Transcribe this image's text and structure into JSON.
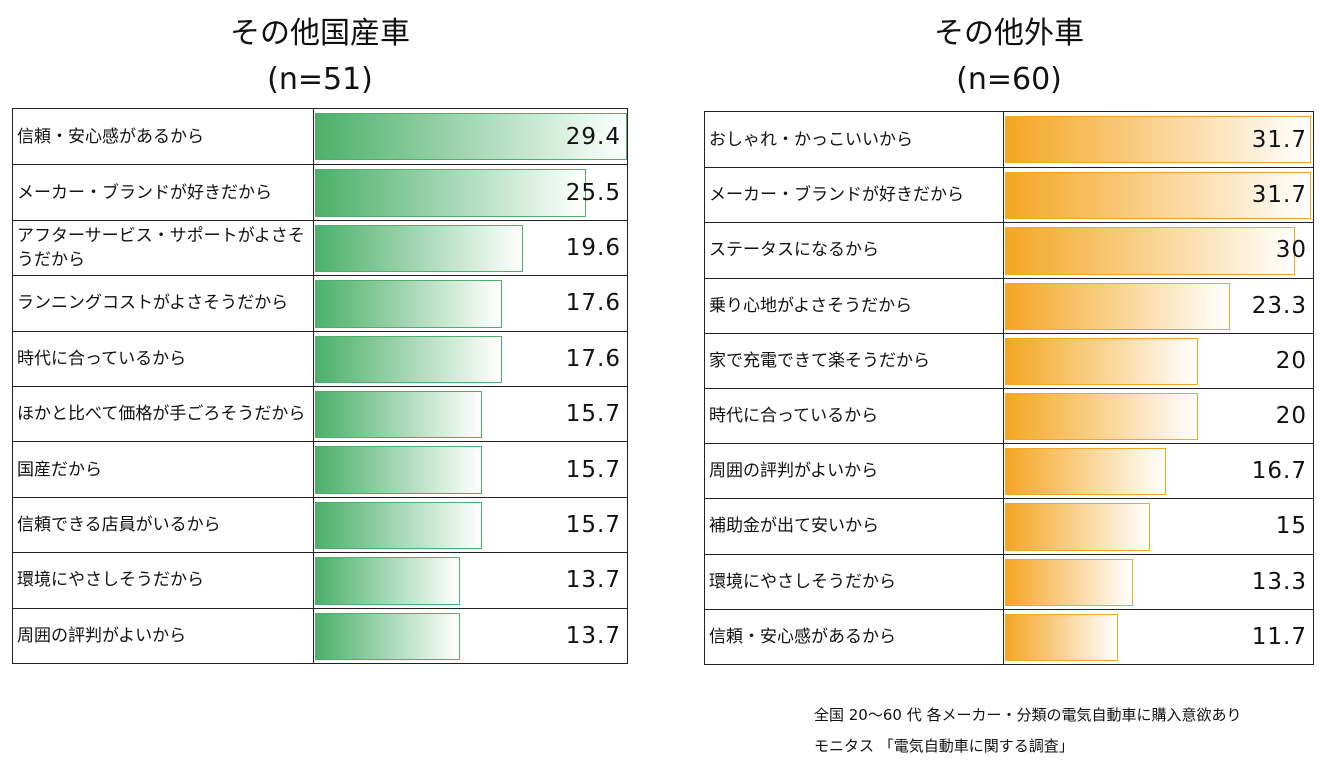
{
  "notes": {
    "line1": "全国 20～60 代  各メーカー・分類の電気自動車に購入意欲あり",
    "line2": "モニタス 「電気自動車に関する調査」"
  },
  "chart_data": [
    {
      "type": "bar",
      "title": "その他国産車",
      "subtitle": "(n=51)",
      "color": "#4cb06a",
      "xlim": [
        0,
        29.4
      ],
      "categories": [
        "信頼・安心感があるから",
        "メーカー・ブランドが好きだから",
        "アフターサービス・サポートがよさそうだから",
        "ランニングコストがよさそうだから",
        "時代に合っているから",
        "ほかと比べて価格が手ごろそうだから",
        "国産だから",
        "信頼できる店員がいるから",
        "環境にやさしそうだから",
        "周囲の評判がよいから"
      ],
      "values": [
        29.4,
        25.5,
        19.6,
        17.6,
        17.6,
        15.7,
        15.7,
        15.7,
        13.7,
        13.7
      ]
    },
    {
      "type": "bar",
      "title": "その他外車",
      "subtitle": "(n=60)",
      "color": "#f5a623",
      "xlim": [
        0,
        31.7
      ],
      "categories": [
        "おしゃれ・かっこいいから",
        "メーカー・ブランドが好きだから",
        "ステータスになるから",
        "乗り心地がよさそうだから",
        "家で充電できて楽そうだから",
        "時代に合っているから",
        "周囲の評判がよいから",
        "補助金が出て安いから",
        "環境にやさしそうだから",
        "信頼・安心感があるから"
      ],
      "values": [
        31.7,
        31.7,
        30,
        23.3,
        20,
        20,
        16.7,
        15,
        13.3,
        11.7
      ]
    }
  ]
}
